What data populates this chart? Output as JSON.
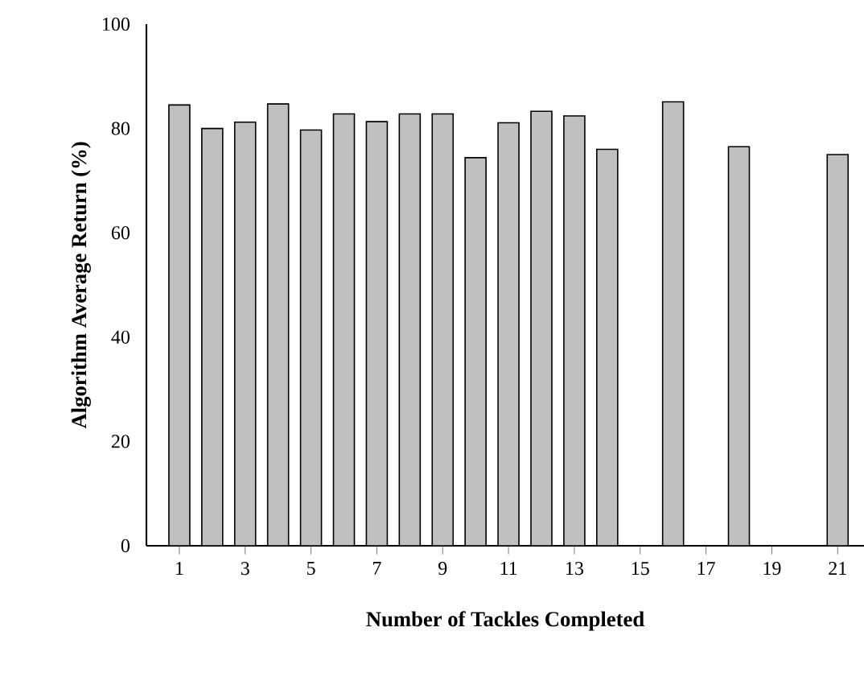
{
  "chart_data": {
    "type": "bar",
    "xlabel": "Number of Tackles Completed",
    "ylabel": "Algorithm Average Return (%)",
    "categories": [
      "1",
      null,
      "3",
      null,
      "5",
      null,
      "7",
      null,
      "9",
      null,
      "11",
      null,
      "13",
      null,
      "15",
      null,
      "17",
      null,
      "19",
      null,
      "21"
    ],
    "values": [
      84.5,
      80.0,
      81.2,
      84.7,
      79.7,
      82.8,
      81.3,
      82.8,
      82.8,
      74.4,
      81.1,
      83.3,
      82.4,
      76.0,
      null,
      85.1,
      null,
      76.5,
      null,
      null,
      75.0
    ],
    "color": "#c0c0c0",
    "ylim": [
      0,
      100
    ],
    "yticks": [
      0,
      20,
      40,
      60,
      80,
      100
    ]
  }
}
